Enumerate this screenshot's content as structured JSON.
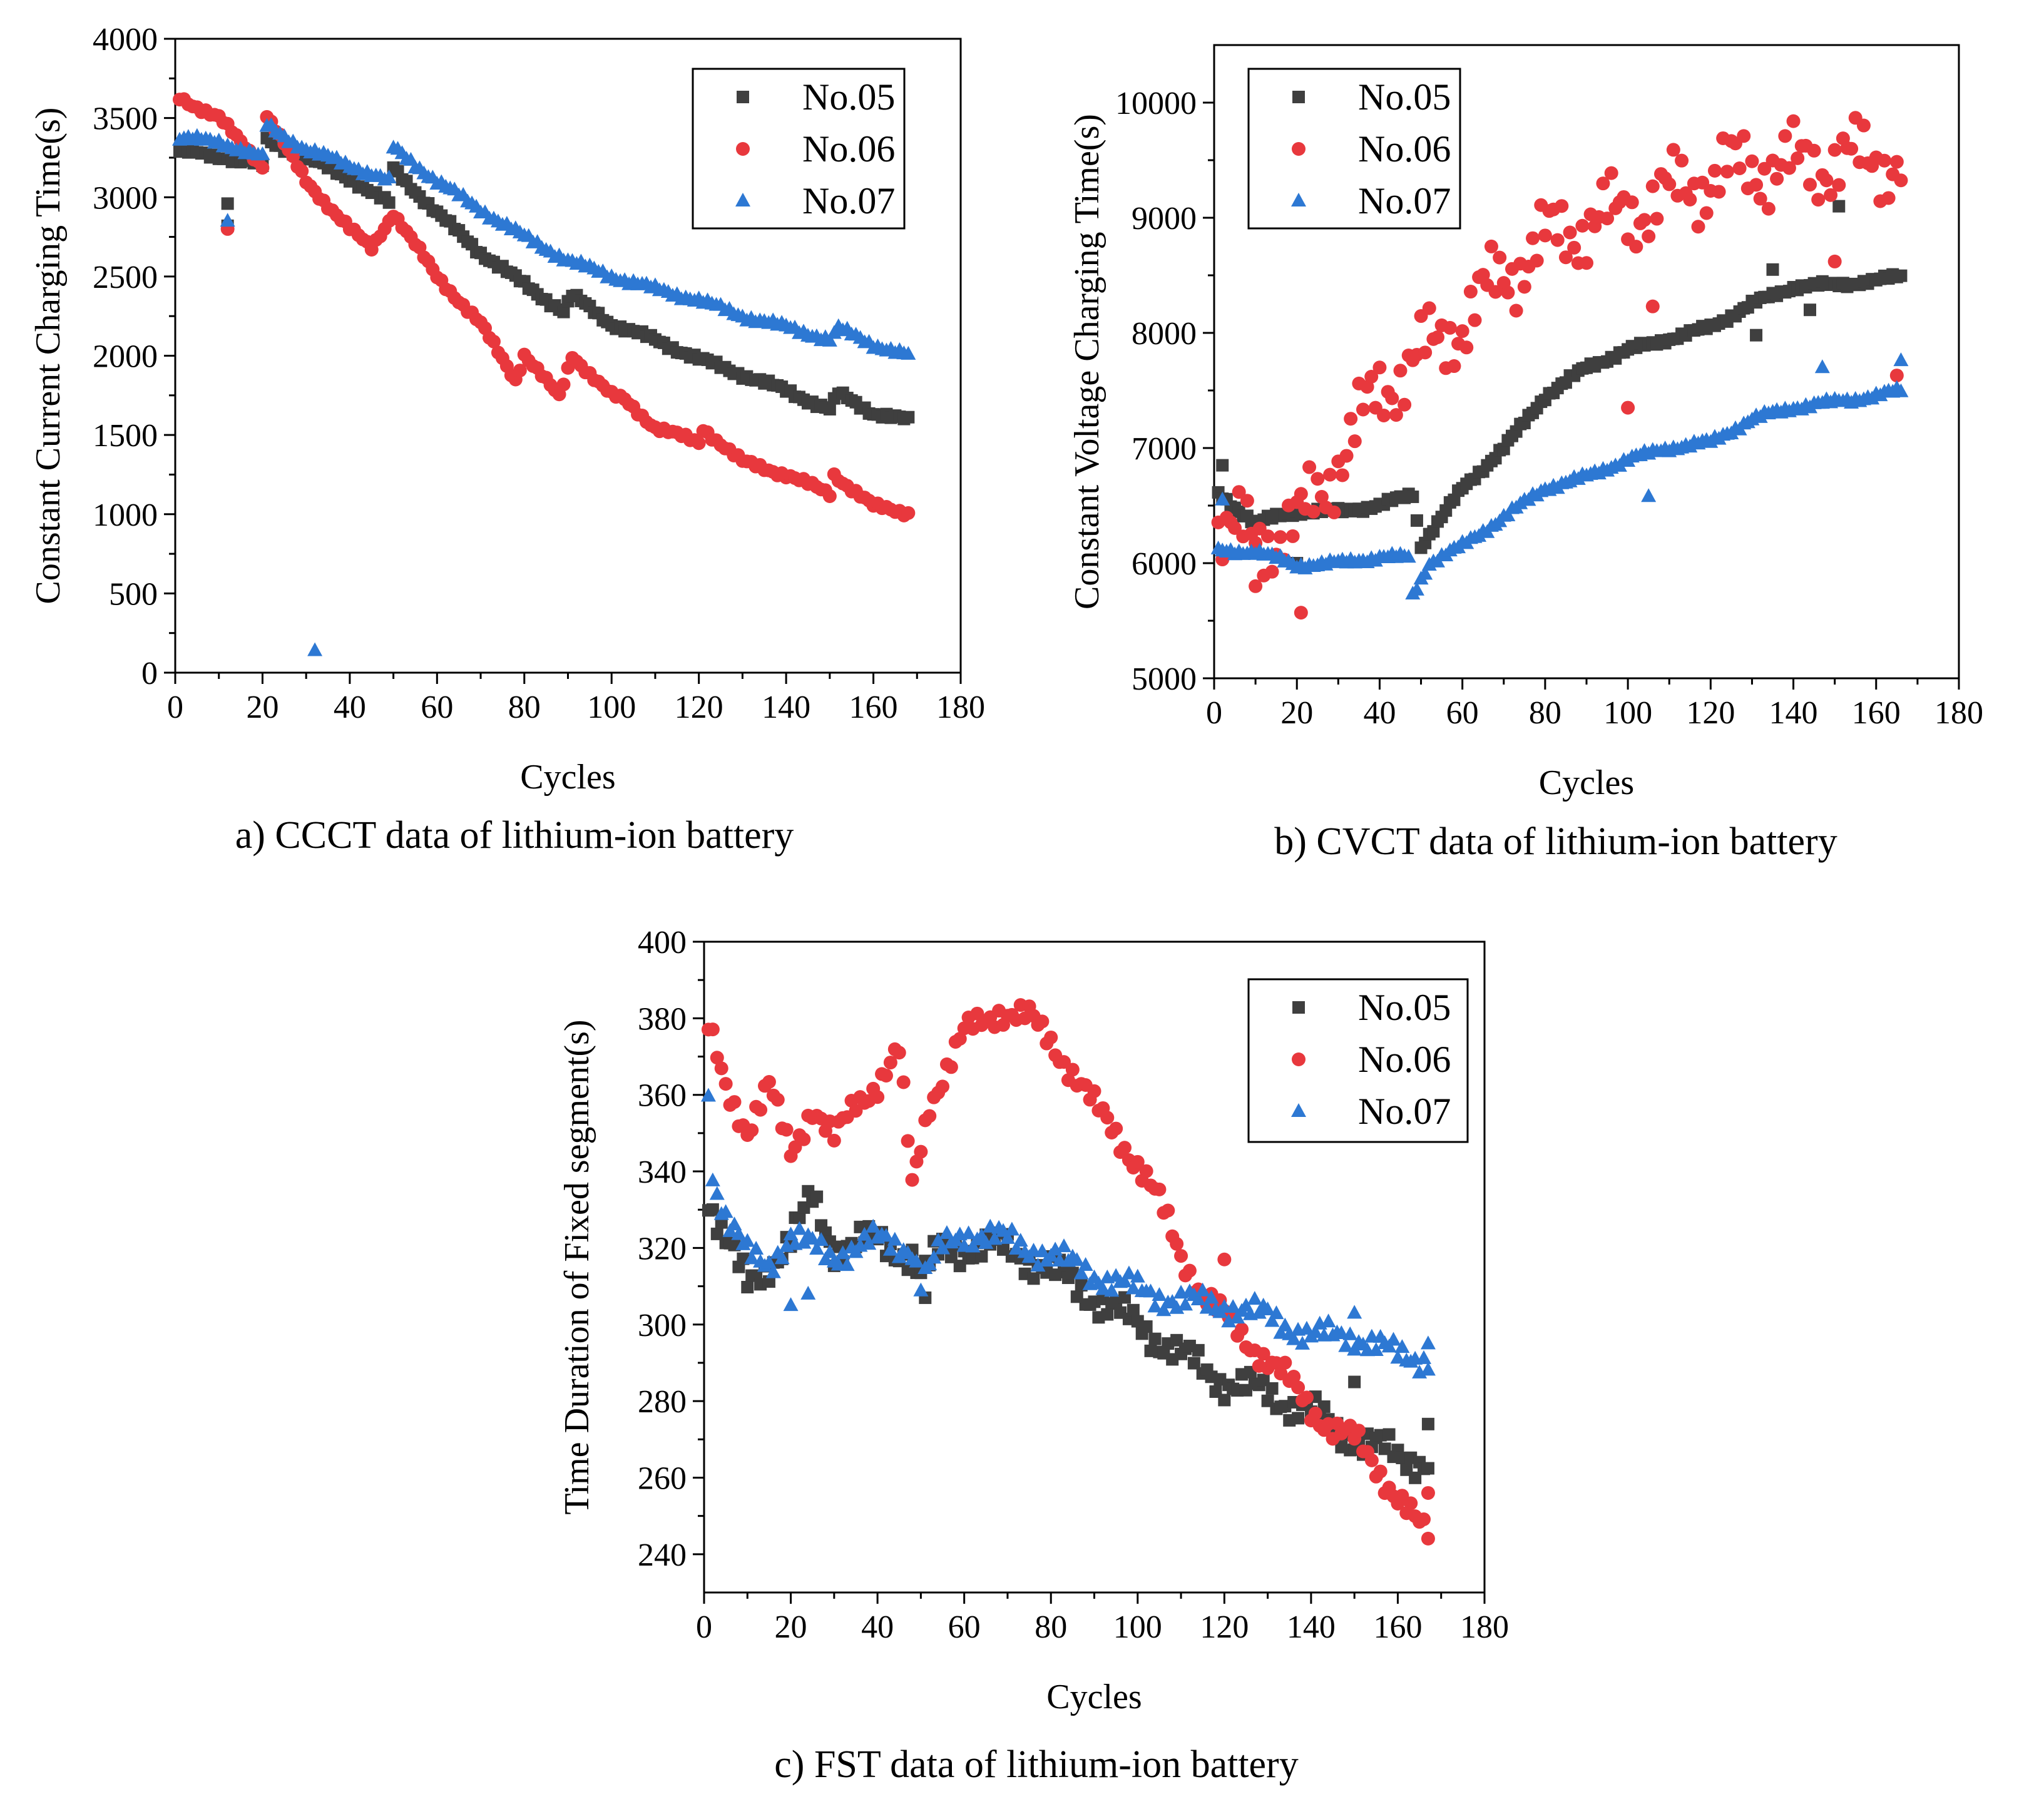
{
  "figure": {
    "captions": [
      "a) CCCT data of lithium-ion battery",
      "b) CVCT data of lithium-ion battery",
      "c) FST data of lithium-ion battery"
    ]
  },
  "chart_data": [
    {
      "id": "ccct",
      "type": "scatter",
      "title": "",
      "caption": "a) CCCT data of lithium-ion battery",
      "xlabel": "Cycles",
      "ylabel": "Constant Current Charging Time(s)",
      "xlim": [
        0,
        180
      ],
      "ylim": [
        0,
        4000
      ],
      "xticks": [
        0,
        20,
        40,
        60,
        80,
        100,
        120,
        140,
        160,
        180
      ],
      "yticks": [
        0,
        500,
        1000,
        1500,
        2000,
        2500,
        3000,
        3500,
        4000
      ],
      "legend_position": "top-right",
      "series": [
        {
          "name": "No.05",
          "marker": "square",
          "color": "#3f3f3f",
          "anchors": [
            [
              1,
              3290
            ],
            [
              10,
              3260
            ],
            [
              20,
              3200
            ],
            [
              21,
              3360
            ],
            [
              30,
              3250
            ],
            [
              40,
              3120
            ],
            [
              49,
              2960
            ],
            [
              50,
              3180
            ],
            [
              60,
              2900
            ],
            [
              70,
              2650
            ],
            [
              80,
              2450
            ],
            [
              89,
              2280
            ],
            [
              91,
              2380
            ],
            [
              100,
              2200
            ],
            [
              110,
              2100
            ],
            [
              120,
              1980
            ],
            [
              130,
              1880
            ],
            [
              140,
              1780
            ],
            [
              150,
              1660
            ],
            [
              152,
              1760
            ],
            [
              160,
              1640
            ],
            [
              168,
              1590
            ]
          ],
          "outliers": [
            [
              12,
              2960
            ],
            [
              12,
              2820
            ]
          ]
        },
        {
          "name": "No.06",
          "marker": "circle",
          "color": "#e8383d",
          "anchors": [
            [
              1,
              3630
            ],
            [
              10,
              3500
            ],
            [
              20,
              3200
            ],
            [
              21,
              3520
            ],
            [
              30,
              3100
            ],
            [
              40,
              2800
            ],
            [
              45,
              2680
            ],
            [
              50,
              2900
            ],
            [
              60,
              2500
            ],
            [
              70,
              2200
            ],
            [
              78,
              1850
            ],
            [
              80,
              2010
            ],
            [
              88,
              1740
            ],
            [
              91,
              2000
            ],
            [
              100,
              1750
            ],
            [
              103,
              1720
            ],
            [
              110,
              1550
            ],
            [
              120,
              1450
            ],
            [
              121,
              1540
            ],
            [
              130,
              1330
            ],
            [
              140,
              1250
            ],
            [
              150,
              1130
            ],
            [
              151,
              1250
            ],
            [
              160,
              1050
            ],
            [
              168,
              1010
            ]
          ],
          "outliers": [
            [
              12,
              2800
            ]
          ]
        },
        {
          "name": "No.07",
          "marker": "triangle",
          "color": "#2d78d3",
          "anchors": [
            [
              1,
              3370
            ],
            [
              10,
              3350
            ],
            [
              20,
              3250
            ],
            [
              21,
              3450
            ],
            [
              30,
              3300
            ],
            [
              40,
              3200
            ],
            [
              49,
              3100
            ],
            [
              50,
              3310
            ],
            [
              60,
              3100
            ],
            [
              70,
              2920
            ],
            [
              80,
              2750
            ],
            [
              90,
              2600
            ],
            [
              100,
              2500
            ],
            [
              110,
              2420
            ],
            [
              120,
              2350
            ],
            [
              130,
              2250
            ],
            [
              140,
              2180
            ],
            [
              150,
              2100
            ],
            [
              152,
              2170
            ],
            [
              160,
              2070
            ],
            [
              168,
              2000
            ]
          ],
          "outliers": [
            [
              12,
              2850
            ],
            [
              32,
              140
            ]
          ]
        }
      ]
    },
    {
      "id": "cvct",
      "type": "scatter",
      "title": "",
      "caption": "b) CVCT data of lithium-ion battery",
      "xlabel": "Cycles",
      "ylabel": "Constant Voltage Charging Time(s)",
      "xlim": [
        0,
        180
      ],
      "ylim": [
        5000,
        10500
      ],
      "xticks": [
        0,
        20,
        40,
        60,
        80,
        100,
        120,
        140,
        160,
        180
      ],
      "yticks": [
        5000,
        6000,
        7000,
        8000,
        9000,
        10000
      ],
      "legend_position": "top-left",
      "series": [
        {
          "name": "No.05",
          "marker": "square",
          "color": "#3f3f3f",
          "anchors": [
            [
              1,
              6600
            ],
            [
              10,
              6350
            ],
            [
              20,
              6450
            ],
            [
              30,
              6450
            ],
            [
              40,
              6500
            ],
            [
              48,
              6600
            ],
            [
              50,
              6150
            ],
            [
              60,
              6650
            ],
            [
              70,
              7000
            ],
            [
              80,
              7450
            ],
            [
              90,
              7700
            ],
            [
              100,
              7850
            ],
            [
              110,
              7950
            ],
            [
              120,
              8050
            ],
            [
              130,
              8250
            ],
            [
              140,
              8400
            ],
            [
              150,
              8420
            ],
            [
              160,
              8450
            ],
            [
              166,
              8500
            ]
          ],
          "outliers": [
            [
              2,
              6850
            ],
            [
              20,
              6000
            ],
            [
              135,
              8550
            ],
            [
              151,
              9100
            ],
            [
              144,
              8200
            ],
            [
              131,
              7980
            ]
          ]
        },
        {
          "name": "No.06",
          "marker": "circle",
          "color": "#e8383d",
          "anchors": [
            [
              1,
              6300
            ],
            [
              10,
              6200
            ],
            [
              20,
              6300
            ],
            [
              30,
              6900
            ],
            [
              40,
              7500
            ],
            [
              50,
              7800
            ],
            [
              60,
              8100
            ],
            [
              70,
              8500
            ],
            [
              80,
              8800
            ],
            [
              90,
              8950
            ],
            [
              100,
              9050
            ],
            [
              110,
              9200
            ],
            [
              120,
              9350
            ],
            [
              130,
              9450
            ],
            [
              140,
              9450
            ],
            [
              150,
              9500
            ],
            [
              160,
              9500
            ],
            [
              166,
              9500
            ]
          ],
          "spread": 400,
          "outliers": [
            [
              21,
              5570
            ],
            [
              10,
              5800
            ],
            [
              100,
              7350
            ],
            [
              150,
              8620
            ],
            [
              106,
              8230
            ],
            [
              165,
              7630
            ]
          ]
        },
        {
          "name": "No.07",
          "marker": "triangle",
          "color": "#2d78d3",
          "anchors": [
            [
              1,
              6100
            ],
            [
              10,
              6100
            ],
            [
              20,
              5980
            ],
            [
              30,
              6000
            ],
            [
              40,
              6050
            ],
            [
              47,
              6050
            ],
            [
              48,
              5720
            ],
            [
              52,
              6000
            ],
            [
              60,
              6150
            ],
            [
              70,
              6400
            ],
            [
              80,
              6650
            ],
            [
              90,
              6750
            ],
            [
              100,
              6900
            ],
            [
              110,
              7000
            ],
            [
              120,
              7050
            ],
            [
              130,
              7250
            ],
            [
              140,
              7350
            ],
            [
              150,
              7400
            ],
            [
              160,
              7450
            ],
            [
              166,
              7500
            ]
          ],
          "outliers": [
            [
              2,
              6550
            ],
            [
              105,
              6580
            ],
            [
              147,
              7700
            ],
            [
              166,
              7760
            ]
          ]
        }
      ]
    },
    {
      "id": "fst",
      "type": "scatter",
      "title": "",
      "caption": "c) FST data of lithium-ion battery",
      "xlabel": "Cycles",
      "ylabel": "Time Duration of Fixed segment(s)",
      "xlim": [
        0,
        180
      ],
      "ylim": [
        230,
        400
      ],
      "xticks": [
        0,
        20,
        40,
        60,
        80,
        100,
        120,
        140,
        160,
        180
      ],
      "yticks": [
        240,
        260,
        280,
        300,
        320,
        340,
        360,
        380,
        400
      ],
      "legend_position": "top-right",
      "series": [
        {
          "name": "No.05",
          "marker": "square",
          "color": "#3f3f3f",
          "anchors": [
            [
              1,
              333
            ],
            [
              5,
              322
            ],
            [
              10,
              310
            ],
            [
              20,
              322
            ],
            [
              25,
              333
            ],
            [
              30,
              320
            ],
            [
              40,
              322
            ],
            [
              48,
              318
            ],
            [
              50,
              312
            ],
            [
              55,
              320
            ],
            [
              60,
              320
            ],
            [
              70,
              320
            ],
            [
              80,
              314
            ],
            [
              90,
              307
            ],
            [
              100,
              300
            ],
            [
              110,
              292
            ],
            [
              120,
              285
            ],
            [
              130,
              282
            ],
            [
              140,
              277
            ],
            [
              150,
              270
            ],
            [
              160,
              266
            ],
            [
              167,
              264
            ]
          ],
          "spread": 5,
          "outliers": [
            [
              150,
              285
            ],
            [
              167,
              274
            ],
            [
              51,
              307
            ]
          ]
        },
        {
          "name": "No.06",
          "marker": "circle",
          "color": "#e8383d",
          "anchors": [
            [
              1,
              377
            ],
            [
              5,
              362
            ],
            [
              10,
              351
            ],
            [
              15,
              362
            ],
            [
              20,
              345
            ],
            [
              25,
              357
            ],
            [
              30,
              348
            ],
            [
              35,
              358
            ],
            [
              40,
              363
            ],
            [
              45,
              371
            ],
            [
              48,
              336
            ],
            [
              52,
              358
            ],
            [
              60,
              376
            ],
            [
              68,
              382
            ],
            [
              75,
              380
            ],
            [
              80,
              374
            ],
            [
              85,
              366
            ],
            [
              90,
              357
            ],
            [
              95,
              350
            ],
            [
              100,
              342
            ],
            [
              105,
              332
            ],
            [
              110,
              318
            ],
            [
              115,
              308
            ],
            [
              120,
              302
            ],
            [
              125,
              296
            ],
            [
              130,
              291
            ],
            [
              135,
              285
            ],
            [
              140,
              278
            ],
            [
              145,
              273
            ],
            [
              150,
              270
            ],
            [
              155,
              263
            ],
            [
              160,
              255
            ],
            [
              165,
              247
            ],
            [
              167,
              245
            ]
          ],
          "spread": 4,
          "outliers": [
            [
              120,
              317
            ],
            [
              167,
              256
            ]
          ]
        },
        {
          "name": "No.07",
          "marker": "triangle",
          "color": "#2d78d3",
          "anchors": [
            [
              1,
              363
            ],
            [
              2,
              339
            ],
            [
              5,
              328
            ],
            [
              10,
              318
            ],
            [
              15,
              316
            ],
            [
              20,
              323
            ],
            [
              25,
              320
            ],
            [
              30,
              318
            ],
            [
              40,
              322
            ],
            [
              48,
              320
            ],
            [
              50,
              311
            ],
            [
              55,
              320
            ],
            [
              60,
              324
            ],
            [
              70,
              322
            ],
            [
              80,
              318
            ],
            [
              90,
              313
            ],
            [
              100,
              309
            ],
            [
              110,
              306
            ],
            [
              120,
              305
            ],
            [
              130,
              302
            ],
            [
              140,
              297
            ],
            [
              150,
              297
            ],
            [
              160,
              292
            ],
            [
              167,
              291
            ]
          ],
          "spread": 4,
          "outliers": [
            [
              20,
              305
            ],
            [
              150,
              303
            ],
            [
              167,
              295
            ],
            [
              24,
              308
            ]
          ]
        }
      ]
    }
  ]
}
